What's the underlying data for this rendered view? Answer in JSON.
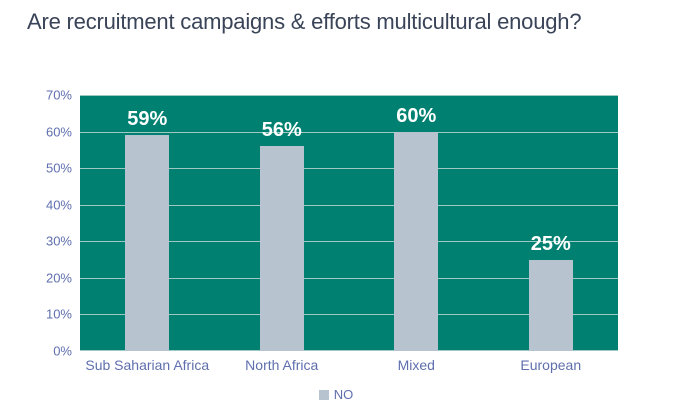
{
  "title": "Are recruitment campaigns & efforts multicultural enough?",
  "chart_data": {
    "type": "bar",
    "title": "Are recruitment campaigns & efforts multicultural enough?",
    "categories": [
      "Sub Saharian Africa",
      "North Africa",
      "Mixed",
      "European"
    ],
    "series": [
      {
        "name": "NO",
        "values": [
          59,
          56,
          60,
          25
        ]
      }
    ],
    "data_labels": [
      "59%",
      "56%",
      "60%",
      "25%"
    ],
    "xlabel": "",
    "ylabel": "",
    "ylim": [
      0,
      70
    ],
    "ytick_step": 10,
    "ytick_labels": [
      "0%",
      "10%",
      "20%",
      "30%",
      "40%",
      "50%",
      "60%",
      "70%"
    ],
    "grid": true,
    "legend": {
      "position": "bottom",
      "entries": [
        "NO"
      ]
    },
    "colors": {
      "plot_background": "#008070",
      "bar": "#b7c4d0",
      "gridline": "#a0c8c2",
      "axis_label": "#5f6fae",
      "title": "#3a4458",
      "data_label": "#ffffff"
    }
  }
}
